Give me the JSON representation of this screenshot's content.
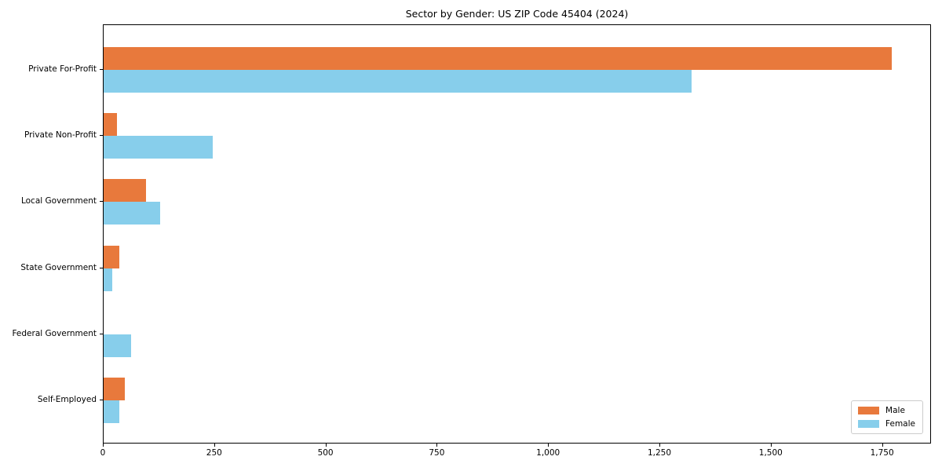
{
  "title": "Sector by Gender: US ZIP Code 45404 (2024)",
  "chart_data": {
    "type": "bar",
    "orientation": "horizontal",
    "title": "Sector by Gender: US ZIP Code 45404 (2024)",
    "xlabel": "",
    "ylabel": "",
    "categories": [
      "Private For-Profit",
      "Private Non-Profit",
      "Local Government",
      "State Government",
      "Federal Government",
      "Self-Employed"
    ],
    "series": [
      {
        "name": "Male",
        "color": "#e8793c",
        "values": [
          1770,
          30,
          95,
          35,
          0,
          48
        ]
      },
      {
        "name": "Female",
        "color": "#87ceeb",
        "values": [
          1320,
          245,
          127,
          20,
          62,
          36
        ]
      }
    ],
    "xlim": [
      0,
      1860
    ],
    "xticks": [
      0,
      250,
      500,
      750,
      1000,
      1250,
      1500,
      1750
    ],
    "xtick_labels": [
      "0",
      "250",
      "500",
      "750",
      "1,000",
      "1,250",
      "1,500",
      "1,750"
    ],
    "grid": false,
    "legend_position": "lower right",
    "axis_color": "#000000",
    "legend_border_color": "#cccccc"
  }
}
